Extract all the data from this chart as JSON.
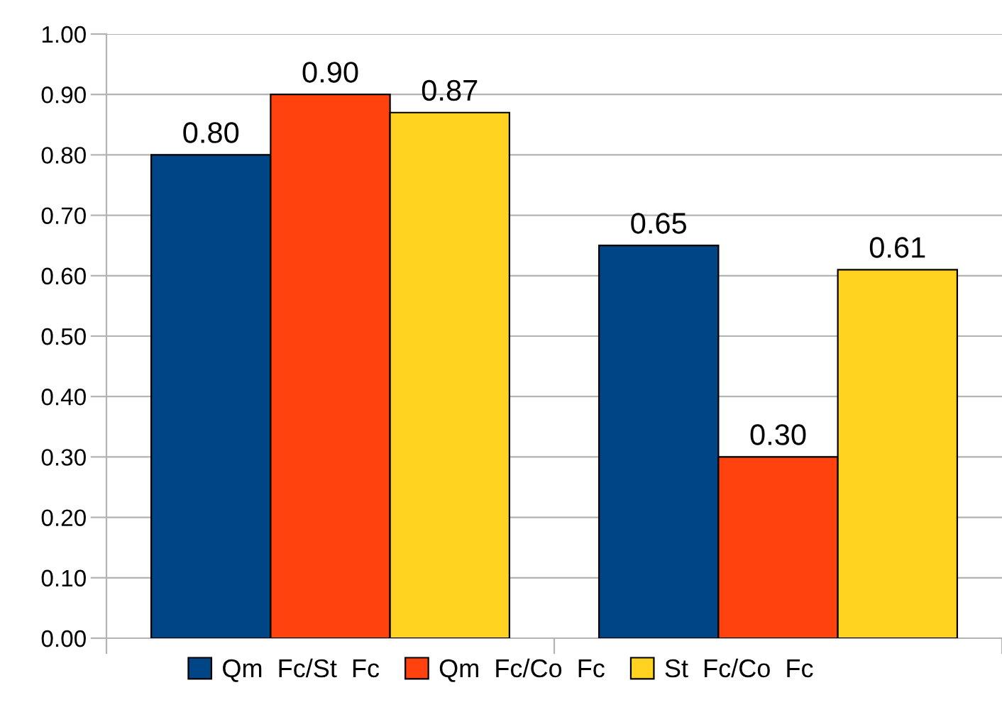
{
  "chart_data": {
    "type": "bar",
    "categories": [
      null,
      null
    ],
    "series": [
      {
        "name": "Qm  Fc/St  Fc",
        "color": "#004586",
        "values": [
          0.8,
          0.65
        ],
        "value_labels": [
          "0.80",
          "0.65"
        ]
      },
      {
        "name": "Qm  Fc/Co  Fc",
        "color": "#ff420e",
        "values": [
          0.9,
          0.3
        ],
        "value_labels": [
          "0.90",
          "0.30"
        ]
      },
      {
        "name": "St  Fc/Co  Fc",
        "color": "#ffd320",
        "values": [
          0.87,
          0.61
        ],
        "value_labels": [
          "0.87",
          "0.61"
        ]
      }
    ],
    "ylim": [
      0,
      1
    ],
    "yticks": [
      "0.00",
      "0.10",
      "0.20",
      "0.30",
      "0.40",
      "0.50",
      "0.60",
      "0.70",
      "0.80",
      "0.90",
      "1.00"
    ],
    "grid": "y",
    "legend": "bottom"
  }
}
